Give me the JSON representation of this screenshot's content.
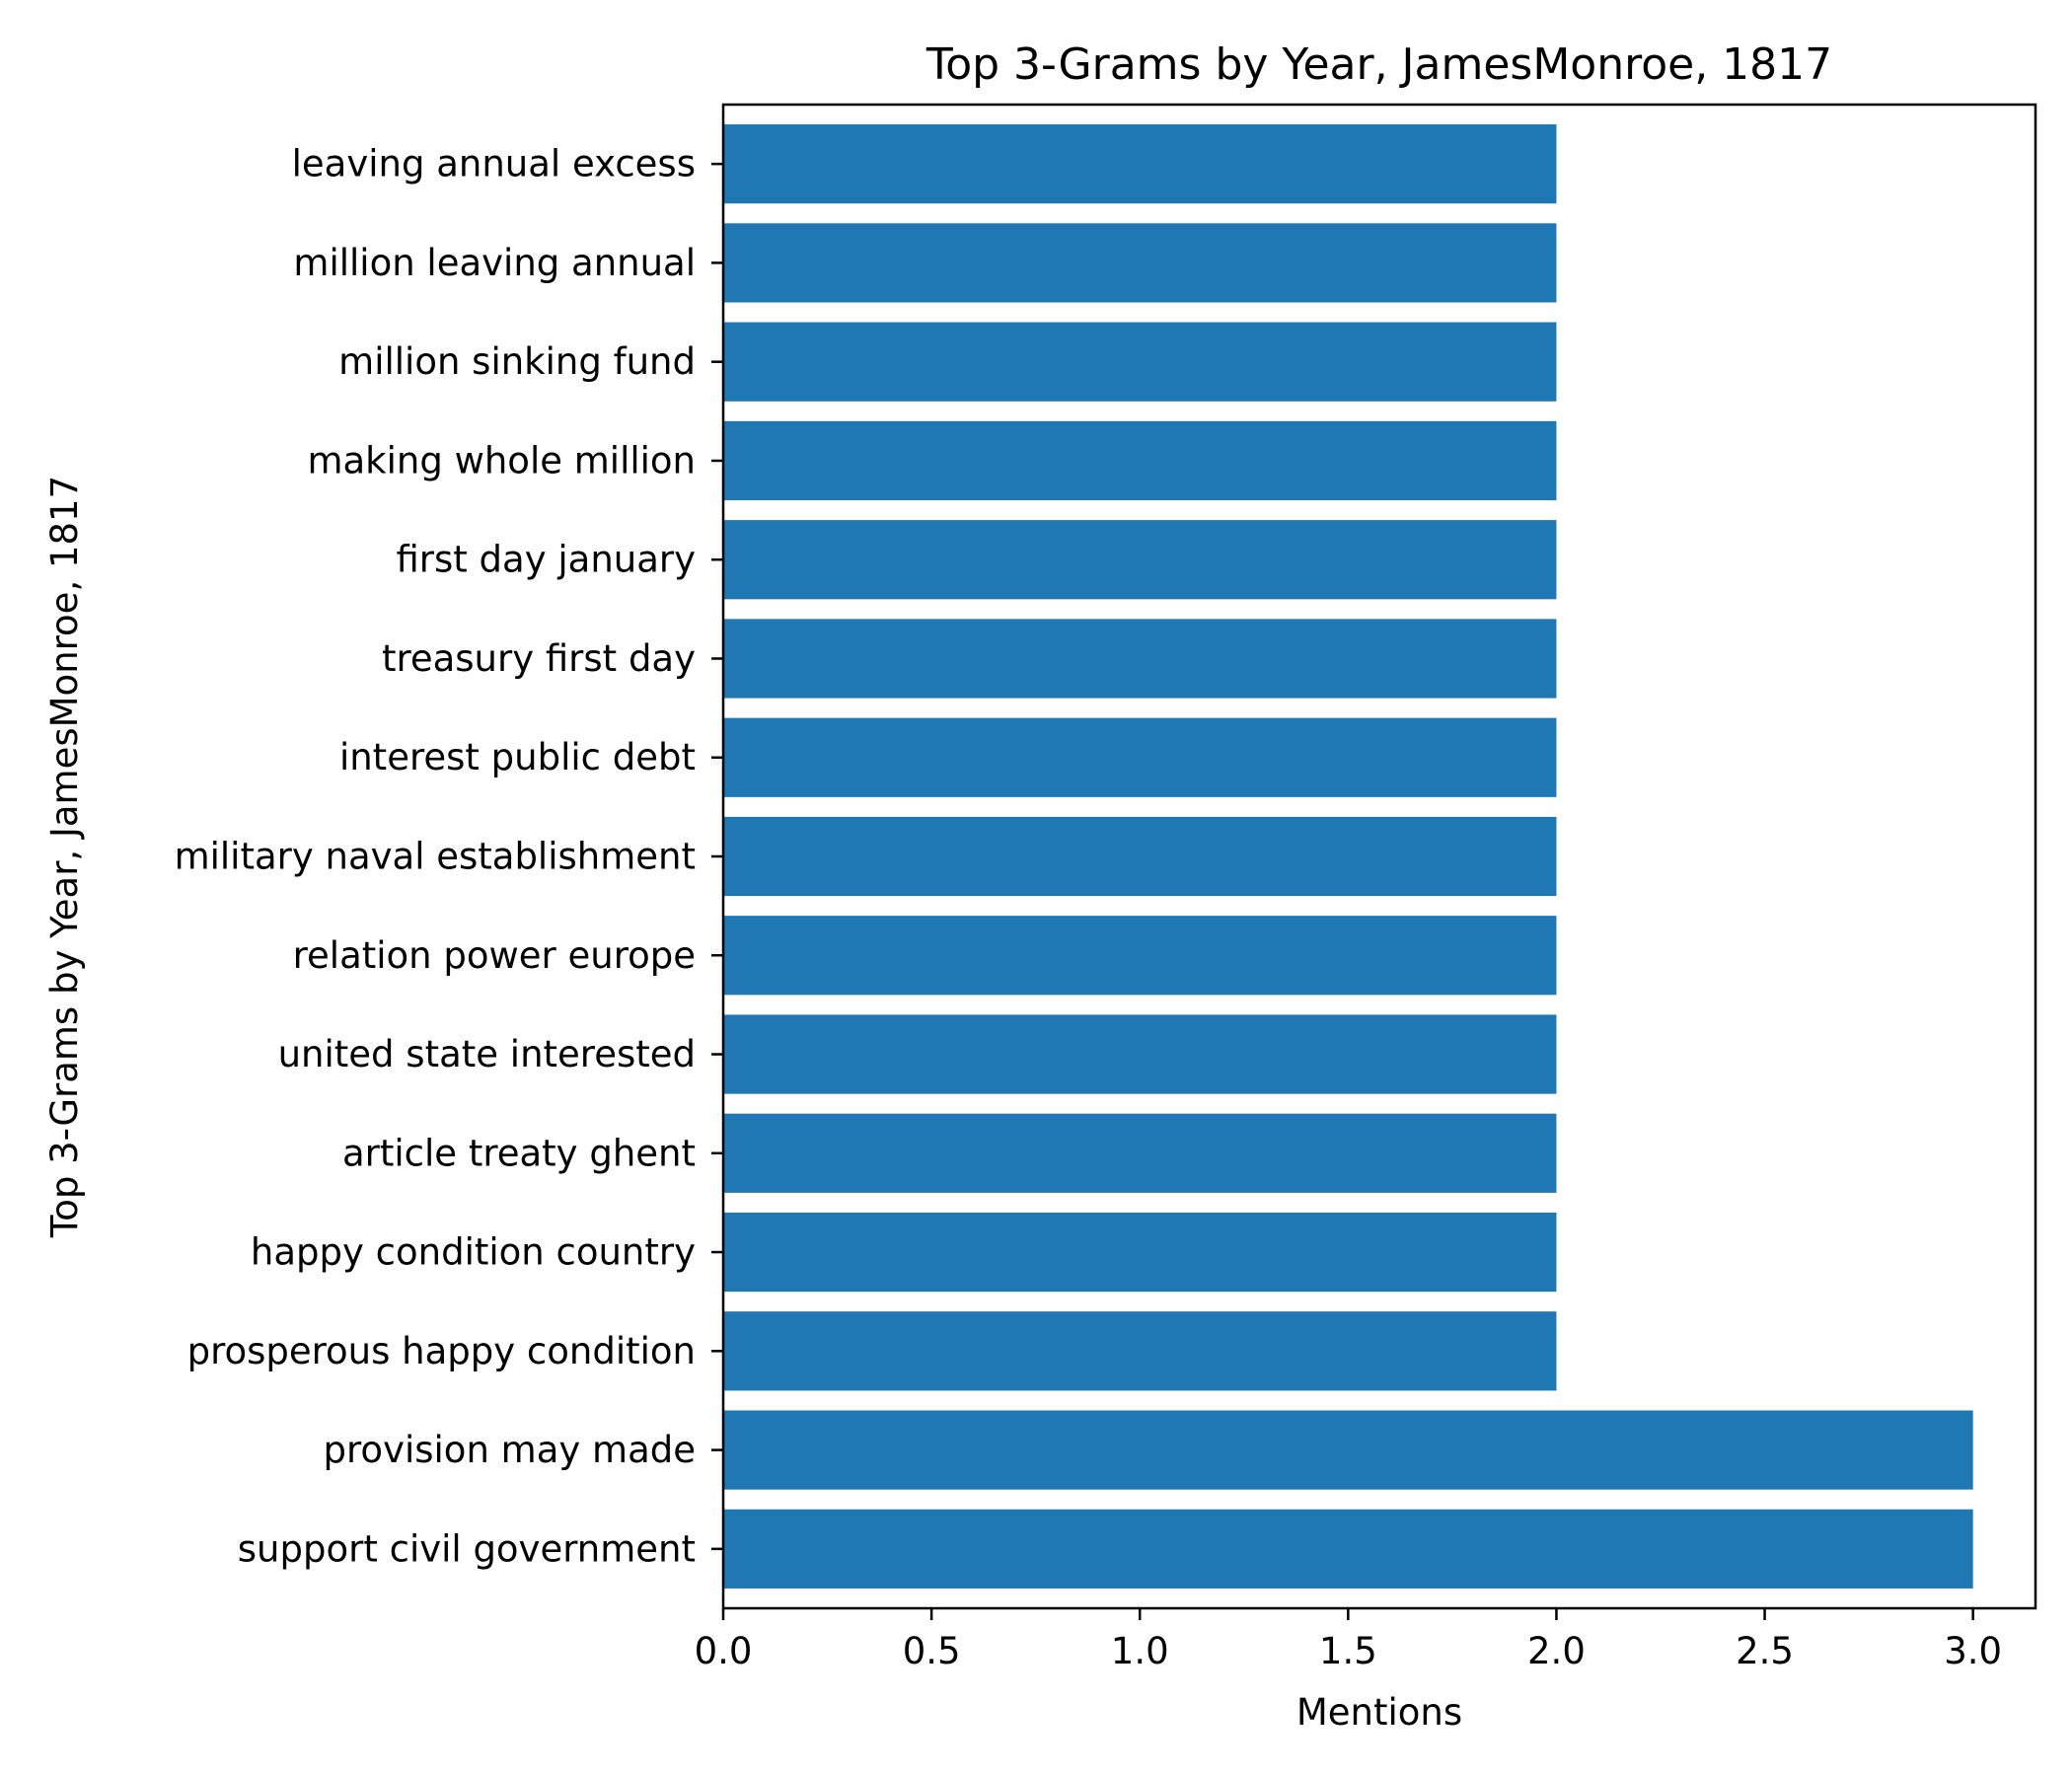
{
  "chart_data": {
    "type": "bar",
    "orientation": "horizontal",
    "title": "Top 3-Grams by Year, JamesMonroe, 1817",
    "xlabel": "Mentions",
    "ylabel": "Top 3-Grams by Year, JamesMonroe, 1817",
    "categories": [
      "support civil government",
      "provision may made",
      "prosperous happy condition",
      "happy condition country",
      "article treaty ghent",
      "united state interested",
      "relation power europe",
      "military naval establishment",
      "interest public debt",
      "treasury first day",
      "first day january",
      "making whole million",
      "million sinking fund",
      "million leaving annual",
      "leaving annual excess"
    ],
    "values": [
      3,
      3,
      2,
      2,
      2,
      2,
      2,
      2,
      2,
      2,
      2,
      2,
      2,
      2,
      2
    ],
    "xlim": [
      0,
      3.15
    ],
    "xticks": [
      0.0,
      0.5,
      1.0,
      1.5,
      2.0,
      2.5,
      3.0
    ],
    "xtick_labels": [
      "0.0",
      "0.5",
      "1.0",
      "1.5",
      "2.0",
      "2.5",
      "3.0"
    ],
    "bar_color": "#1f77b4",
    "grid": false,
    "legend": "none"
  }
}
